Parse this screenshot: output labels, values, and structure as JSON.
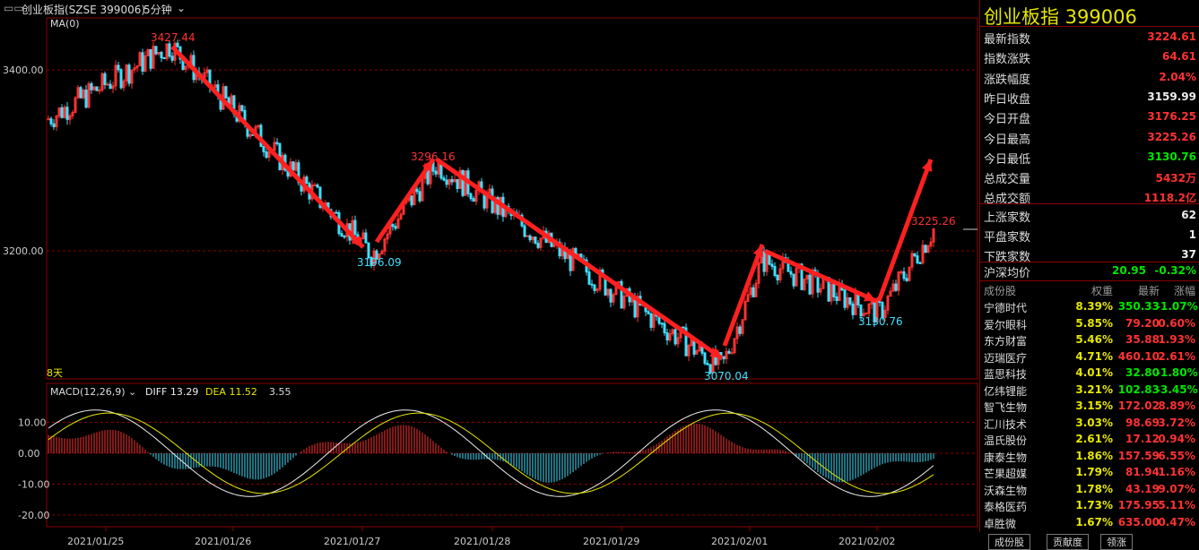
{
  "header": {
    "title": "创业板指(SZSE 399006)",
    "period": "5分钟",
    "ma_label": "MA(0)",
    "days_label": "8天"
  },
  "macd_header": {
    "name": "MACD(12,26,9)",
    "diff": "DIFF 13.29",
    "dea": "DEA 11.52",
    "macd": "3.55"
  },
  "side": {
    "title": "创业板指  399006",
    "quote": [
      {
        "label": "最新指数",
        "value": "3224.61",
        "color": "red"
      },
      {
        "label": "指数涨跌",
        "value": "64.61",
        "color": "red"
      },
      {
        "label": "涨跌幅度",
        "value": "2.04%",
        "color": "red"
      },
      {
        "label": "昨日收盘",
        "value": "3159.99",
        "color": "white"
      },
      {
        "label": "今日开盘",
        "value": "3176.25",
        "color": "red"
      },
      {
        "label": "今日最高",
        "value": "3225.26",
        "color": "red"
      },
      {
        "label": "今日最低",
        "value": "3130.76",
        "color": "green"
      },
      {
        "label": "总成交量",
        "value": "5432万",
        "color": "red"
      },
      {
        "label": "总成交额",
        "value": "1118.2亿",
        "color": "red"
      }
    ],
    "breadth": [
      {
        "label": "上涨家数",
        "value": "62"
      },
      {
        "label": "平盘家数",
        "value": "1"
      },
      {
        "label": "下跌家数",
        "value": "37"
      }
    ],
    "hs": {
      "label": "沪深均价",
      "v1": "20.95",
      "v2": "-0.32%"
    },
    "stock_headers": [
      "成份股",
      "权重",
      "最新",
      "涨幅"
    ],
    "stocks": [
      {
        "n": "宁德时代",
        "w": "8.39%",
        "p": "350.33",
        "c": "-1.07%",
        "up": false
      },
      {
        "n": "爱尔眼科",
        "w": "5.85%",
        "p": "79.20",
        "c": "0.60%",
        "up": true
      },
      {
        "n": "东方财富",
        "w": "5.46%",
        "p": "35.88",
        "c": "1.93%",
        "up": true
      },
      {
        "n": "迈瑞医疗",
        "w": "4.71%",
        "p": "460.10",
        "c": "2.61%",
        "up": true
      },
      {
        "n": "蓝思科技",
        "w": "4.01%",
        "p": "32.80",
        "c": "-1.80%",
        "up": false
      },
      {
        "n": "亿纬锂能",
        "w": "3.21%",
        "p": "102.83",
        "c": "-3.45%",
        "up": false
      },
      {
        "n": "智飞生物",
        "w": "3.15%",
        "p": "172.02",
        "c": "8.89%",
        "up": true
      },
      {
        "n": "汇川技术",
        "w": "3.03%",
        "p": "98.69",
        "c": "3.72%",
        "up": true
      },
      {
        "n": "温氏股份",
        "w": "2.61%",
        "p": "17.12",
        "c": "0.94%",
        "up": true
      },
      {
        "n": "康泰生物",
        "w": "1.86%",
        "p": "157.59",
        "c": "6.55%",
        "up": true
      },
      {
        "n": "芒果超媒",
        "w": "1.79%",
        "p": "81.94",
        "c": "1.16%",
        "up": true
      },
      {
        "n": "沃森生物",
        "w": "1.78%",
        "p": "43.19",
        "c": "9.07%",
        "up": true
      },
      {
        "n": "泰格医药",
        "w": "1.73%",
        "p": "175.95",
        "c": "5.11%",
        "up": true
      },
      {
        "n": "卓胜微",
        "w": "1.67%",
        "p": "635.00",
        "c": "0.47%",
        "up": true
      }
    ],
    "tabs": [
      "成份股",
      "贡献度",
      "领涨"
    ]
  },
  "chart_data": {
    "type": "candlestick",
    "price_ticks": [
      "3400.00",
      "3200.00"
    ],
    "macd_ticks": [
      "10.00",
      "0.00",
      "-10.00",
      "-20.00"
    ],
    "dates": [
      "2021/01/25",
      "2021/01/26",
      "2021/01/27",
      "2021/01/28",
      "2021/01/29",
      "2021/02/01",
      "2021/02/02"
    ],
    "annotations": [
      {
        "text": "3427.44",
        "price": 3427.44,
        "color": "#ff3232"
      },
      {
        "text": "3196.09",
        "price": 3196.09,
        "color": "#40e0ff"
      },
      {
        "text": "3296.16",
        "price": 3296.16,
        "color": "#ff3232"
      },
      {
        "text": "3070.04",
        "price": 3070.04,
        "color": "#40e0ff"
      },
      {
        "text": "3130.76",
        "price": 3130.76,
        "color": "#40e0ff"
      },
      {
        "text": "3225.26",
        "price": 3225.26,
        "color": "#ff3232"
      }
    ],
    "pivots": [
      3345,
      3427.44,
      3196.09,
      3296.16,
      3070.04,
      3190,
      3130.76,
      3225.26
    ]
  }
}
